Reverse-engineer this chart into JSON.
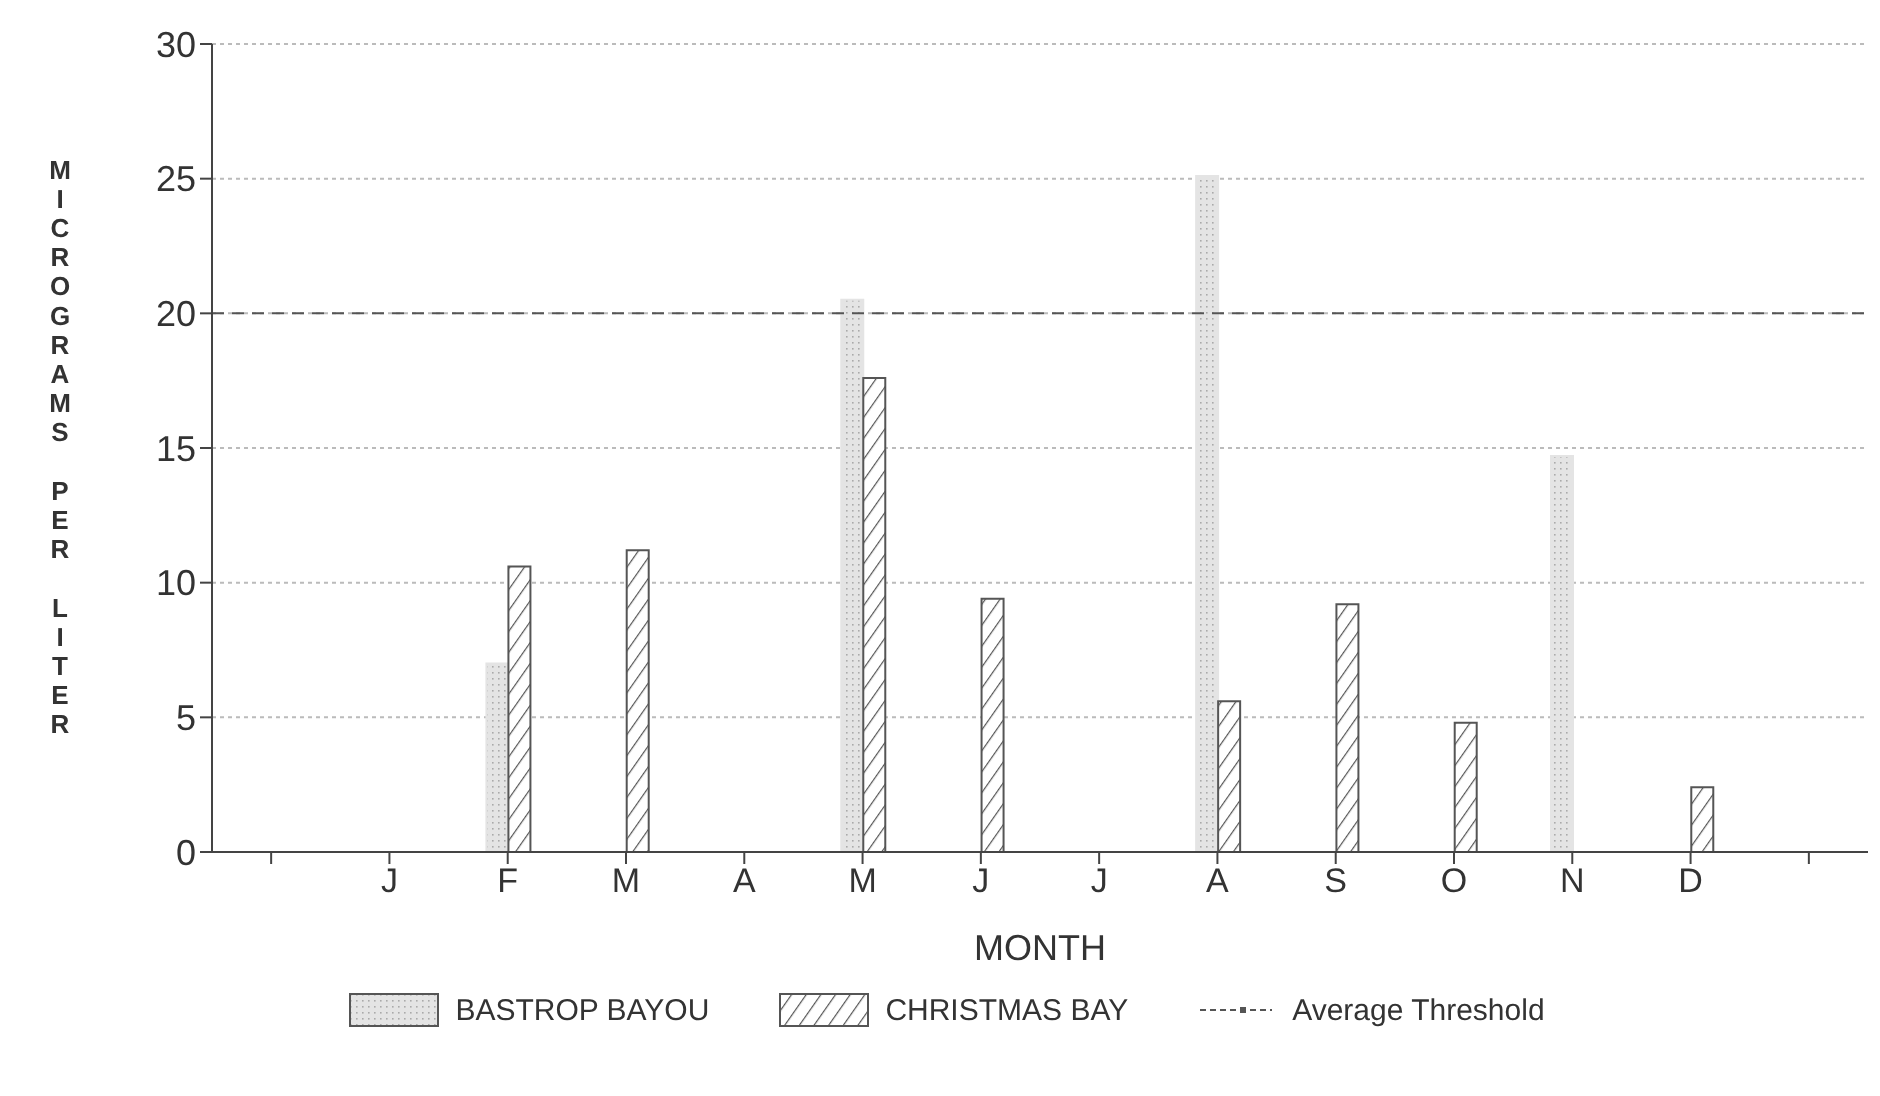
{
  "chart_data": {
    "type": "bar",
    "xlabel": "MONTH",
    "ylabel": "MICROGRAMS PER LITER",
    "categories": [
      null,
      "J",
      "F",
      "M",
      "A",
      "M",
      "J",
      "J",
      "A",
      "S",
      "O",
      "N",
      "D",
      null
    ],
    "series": [
      {
        "name": "BASTROP BAYOU",
        "color": "#e4e4e4",
        "values": [
          null,
          null,
          7.0,
          null,
          null,
          20.5,
          null,
          null,
          25.1,
          null,
          null,
          14.7,
          null,
          null
        ]
      },
      {
        "name": "CHRISTMAS BAY",
        "color": "#555555",
        "values": [
          null,
          null,
          10.6,
          11.2,
          null,
          17.6,
          9.4,
          null,
          5.6,
          9.2,
          4.8,
          null,
          2.4,
          null
        ]
      }
    ],
    "ylim": [
      0,
      30
    ],
    "yticks": [
      0,
      5,
      10,
      15,
      20,
      25,
      30
    ],
    "grid": "y",
    "legend": "bottom",
    "ref_lines": [
      {
        "axis": "y",
        "value": 20,
        "label": "Average Threshold",
        "color": "#555555",
        "line_style": "dashed"
      }
    ]
  }
}
